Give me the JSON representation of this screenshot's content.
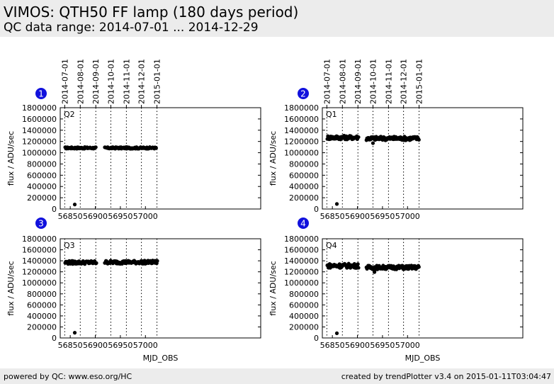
{
  "header": {
    "title": "VIMOS: QTH50 FF lamp (180 days period)",
    "subtitle": "QC data range: 2014-07-01 ... 2014-12-29"
  },
  "footer": {
    "left": "powered by QC: www.eso.org/HC",
    "right": "created by trendPlotter v3.4 on 2015-01-11T03:04:47"
  },
  "colors": {
    "badge": "#1111dd",
    "points": "#000000",
    "header_bg": "#ececec"
  },
  "chart_data": [
    {
      "type": "scatter",
      "panel_number": "1",
      "label": "Q2",
      "xlabel": "",
      "ylabel": "flux / ADU/sec",
      "xlim": [
        56830,
        57230
      ],
      "ylim": [
        0,
        1800000
      ],
      "xticks": [
        56850,
        56900,
        56950,
        57000
      ],
      "yticks": [
        0,
        200000,
        400000,
        600000,
        800000,
        1000000,
        1200000,
        1400000,
        1600000,
        1800000
      ],
      "date_ticks": [
        {
          "label": "2014-07-01",
          "mjd": 56839
        },
        {
          "label": "2014-08-01",
          "mjd": 56870
        },
        {
          "label": "2014-09-01",
          "mjd": 56901
        },
        {
          "label": "2014-10-01",
          "mjd": 56931
        },
        {
          "label": "2014-11-01",
          "mjd": 56962
        },
        {
          "label": "2014-12-01",
          "mjd": 56992
        },
        {
          "label": "2015-01-01",
          "mjd": 57023
        }
      ],
      "segments": [
        {
          "x_start": 56840,
          "x_end": 56902,
          "mean": 1085000,
          "amp": 15000
        },
        {
          "x_start": 56919,
          "x_end": 57022,
          "mean": 1085000,
          "amp": 15000
        }
      ],
      "outliers": [
        {
          "x": 56859,
          "y": 80000
        }
      ]
    },
    {
      "type": "scatter",
      "panel_number": "2",
      "label": "Q1",
      "xlabel": "",
      "ylabel": "flux / ADU/sec",
      "xlim": [
        56830,
        57230
      ],
      "ylim": [
        0,
        1800000
      ],
      "xticks": [
        56850,
        56900,
        56950,
        57000
      ],
      "yticks": [
        0,
        200000,
        400000,
        600000,
        800000,
        1000000,
        1200000,
        1400000,
        1600000,
        1800000
      ],
      "date_ticks": [
        {
          "label": "2014-07-01",
          "mjd": 56839
        },
        {
          "label": "2014-08-01",
          "mjd": 56870
        },
        {
          "label": "2014-09-01",
          "mjd": 56901
        },
        {
          "label": "2014-10-01",
          "mjd": 56931
        },
        {
          "label": "2014-11-01",
          "mjd": 56962
        },
        {
          "label": "2014-12-01",
          "mjd": 56992
        },
        {
          "label": "2015-01-01",
          "mjd": 57023
        }
      ],
      "segments": [
        {
          "x_start": 56840,
          "x_end": 56903,
          "mean": 1270000,
          "amp": 35000
        },
        {
          "x_start": 56918,
          "x_end": 57023,
          "mean": 1255000,
          "amp": 35000
        }
      ],
      "outliers": [
        {
          "x": 56859,
          "y": 90000
        },
        {
          "x": 56931,
          "y": 1170000
        }
      ]
    },
    {
      "type": "scatter",
      "panel_number": "3",
      "label": "Q3",
      "xlabel": "MJD_OBS",
      "ylabel": "flux / ADU/sec",
      "xlim": [
        56830,
        57230
      ],
      "ylim": [
        0,
        1800000
      ],
      "xticks": [
        56850,
        56900,
        56950,
        57000
      ],
      "yticks": [
        0,
        200000,
        400000,
        600000,
        800000,
        1000000,
        1200000,
        1400000,
        1600000,
        1800000
      ],
      "date_ticks": [],
      "segments": [
        {
          "x_start": 56840,
          "x_end": 56903,
          "mean": 1370000,
          "amp": 30000
        },
        {
          "x_start": 56919,
          "x_end": 57024,
          "mean": 1375000,
          "amp": 30000
        }
      ],
      "outliers": [
        {
          "x": 56859,
          "y": 95000
        }
      ]
    },
    {
      "type": "scatter",
      "panel_number": "4",
      "label": "Q4",
      "xlabel": "MJD_OBS",
      "ylabel": "flux / ADU/sec",
      "xlim": [
        56830,
        57230
      ],
      "ylim": [
        0,
        1800000
      ],
      "xticks": [
        56850,
        56900,
        56950,
        57000
      ],
      "yticks": [
        0,
        200000,
        400000,
        600000,
        800000,
        1000000,
        1200000,
        1400000,
        1600000,
        1800000
      ],
      "date_ticks": [],
      "segments": [
        {
          "x_start": 56840,
          "x_end": 56903,
          "mean": 1310000,
          "amp": 40000
        },
        {
          "x_start": 56918,
          "x_end": 57023,
          "mean": 1280000,
          "amp": 35000
        }
      ],
      "outliers": [
        {
          "x": 56859,
          "y": 85000
        },
        {
          "x": 56934,
          "y": 1195000
        }
      ]
    }
  ]
}
